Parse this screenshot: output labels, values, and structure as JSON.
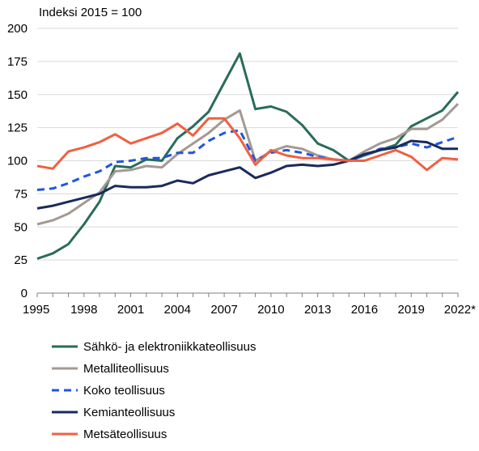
{
  "chart_data": {
    "type": "line",
    "unit_label": "Indeksi 2015 = 100",
    "title": "",
    "xlabel": "",
    "ylabel": "",
    "xlim": [
      1995,
      2022
    ],
    "ylim": [
      0,
      200
    ],
    "y_ticks": [
      "0",
      "25",
      "50",
      "75",
      "100",
      "125",
      "150",
      "175",
      "200"
    ],
    "x_ticks": [
      "1995",
      "1998",
      "2001",
      "2004",
      "2007",
      "2010",
      "2013",
      "2016",
      "2019",
      "2022*"
    ],
    "x": [
      1995,
      1996,
      1997,
      1998,
      1999,
      2000,
      2001,
      2002,
      2003,
      2004,
      2005,
      2006,
      2007,
      2008,
      2009,
      2010,
      2011,
      2012,
      2013,
      2014,
      2015,
      2016,
      2017,
      2018,
      2019,
      2020,
      2021,
      2022
    ],
    "grid": "horizontal",
    "legend_position": "bottom",
    "series": [
      {
        "name": "Sähkö- ja elektroniikkateollisuus",
        "color": "#2a6b5a",
        "dash": "solid",
        "values": [
          26,
          30,
          37,
          52,
          69,
          96,
          95,
          101,
          100,
          117,
          126,
          137,
          159,
          181,
          139,
          141,
          137,
          127,
          113,
          108,
          100,
          104,
          108,
          112,
          126,
          132,
          138,
          152
        ]
      },
      {
        "name": "Metalliteollisuus",
        "color": "#a39a94",
        "dash": "solid",
        "values": [
          52,
          55,
          60,
          68,
          76,
          92,
          93,
          96,
          95,
          105,
          113,
          121,
          131,
          138,
          100,
          107,
          111,
          109,
          104,
          101,
          100,
          107,
          113,
          117,
          124,
          124,
          131,
          143
        ]
      },
      {
        "name": "Koko teollisuus",
        "color": "#2255dd",
        "dash": "dash",
        "values": [
          78,
          79,
          83,
          88,
          92,
          99,
          100,
          102,
          102,
          106,
          106,
          115,
          121,
          123,
          100,
          106,
          108,
          106,
          103,
          101,
          100,
          104,
          109,
          110,
          113,
          110,
          114,
          118
        ]
      },
      {
        "name": "Kemianteollisuus",
        "color": "#1a2a5a",
        "dash": "solid",
        "values": [
          64,
          66,
          69,
          72,
          75,
          81,
          80,
          80,
          81,
          85,
          83,
          89,
          92,
          95,
          87,
          91,
          96,
          97,
          96,
          97,
          100,
          105,
          108,
          110,
          115,
          114,
          109,
          109
        ]
      },
      {
        "name": "Metsäteollisuus",
        "color": "#f06040",
        "dash": "solid",
        "values": [
          96,
          94,
          107,
          110,
          114,
          120,
          113,
          117,
          121,
          128,
          119,
          132,
          132,
          117,
          97,
          108,
          104,
          102,
          102,
          101,
          100,
          100,
          104,
          108,
          103,
          93,
          102,
          101
        ]
      }
    ]
  }
}
